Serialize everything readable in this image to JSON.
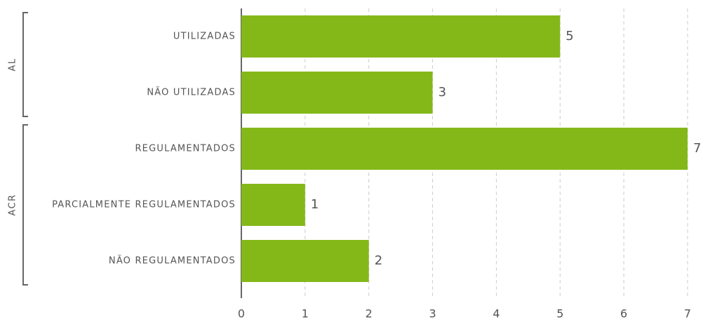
{
  "chart_data": {
    "type": "bar",
    "orientation": "horizontal",
    "categories": [
      "UTILIZADAS",
      "NÃO UTILIZADAS",
      "REGULAMENTADOS",
      "PARCIALMENTE REGULAMENTADOS",
      "NÃO REGULAMENTADOS"
    ],
    "values": [
      5,
      3,
      7,
      1,
      2
    ],
    "groups": [
      {
        "name": "AL",
        "categories": [
          "UTILIZADAS",
          "NÃO UTILIZADAS"
        ]
      },
      {
        "name": "ACR",
        "categories": [
          "REGULAMENTADOS",
          "PARCIALMENTE REGULAMENTADOS",
          "NÃO REGULAMENTADOS"
        ]
      }
    ],
    "color": "#84b819",
    "xlim": [
      0,
      7
    ],
    "xticks": [
      0,
      1,
      2,
      3,
      4,
      5,
      6,
      7
    ],
    "grid": true
  }
}
